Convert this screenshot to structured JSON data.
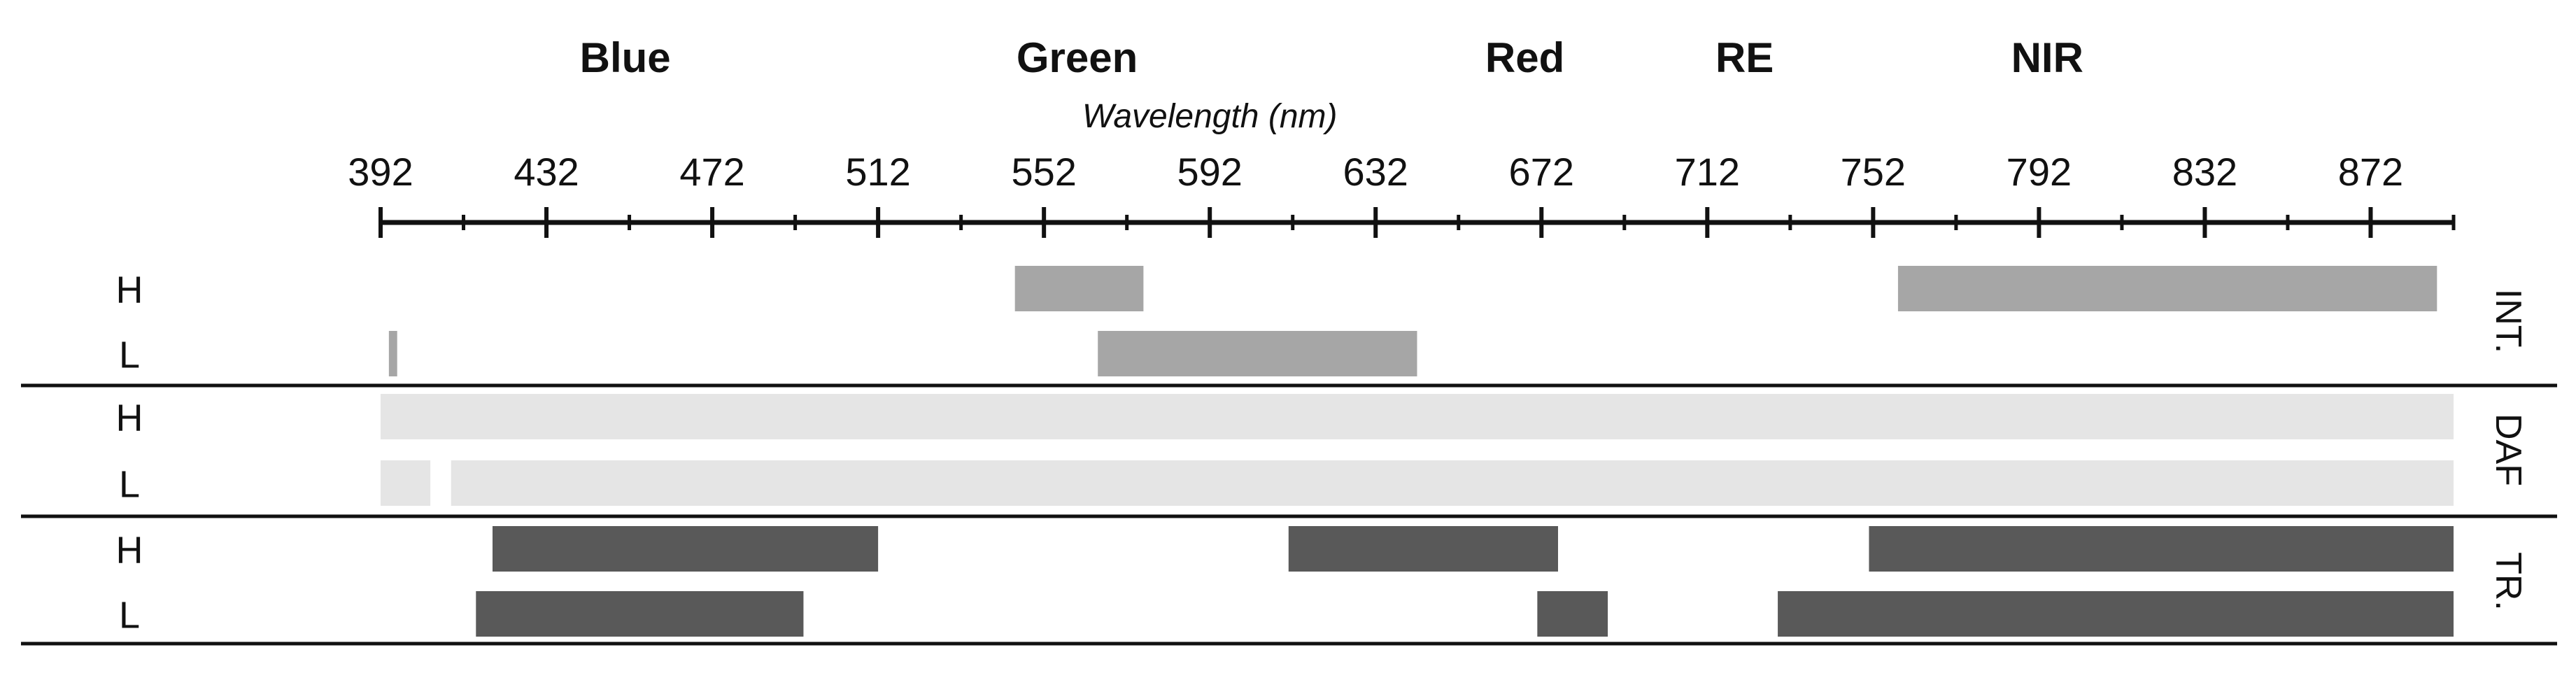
{
  "chart_data": {
    "type": "range-bar",
    "xlabel": "Wavelength (nm)",
    "x_range": [
      392,
      892
    ],
    "ticks_major": [
      392,
      432,
      472,
      512,
      552,
      592,
      632,
      672,
      712,
      752,
      792,
      832,
      872
    ],
    "ticks_minor": [
      412,
      452,
      492,
      532,
      572,
      612,
      652,
      692,
      732,
      772,
      812,
      852,
      892
    ],
    "band_labels": [
      {
        "label": "Blue",
        "center": 451
      },
      {
        "label": "Green",
        "center": 560
      },
      {
        "label": "Red",
        "center": 668
      },
      {
        "label": "RE",
        "center": 721
      },
      {
        "label": "NIR",
        "center": 794
      }
    ],
    "groups": [
      {
        "name": "INT.",
        "color": "#a6a6a6",
        "rows": [
          {
            "label": "H",
            "ranges": [
              [
                545,
                576
              ],
              [
                758,
                888
              ]
            ]
          },
          {
            "label": "L",
            "ranges": [
              [
                394,
                396
              ],
              [
                565,
                642
              ]
            ]
          }
        ]
      },
      {
        "name": "DAF",
        "color": "#e5e5e5",
        "rows": [
          {
            "label": "H",
            "ranges": [
              [
                392,
                892
              ]
            ]
          },
          {
            "label": "L",
            "ranges": [
              [
                392,
                404
              ],
              [
                409,
                892
              ]
            ]
          }
        ]
      },
      {
        "name": "TR.",
        "color": "#595959",
        "rows": [
          {
            "label": "H",
            "ranges": [
              [
                419,
                512
              ],
              [
                611,
                676
              ],
              [
                751,
                892
              ]
            ]
          },
          {
            "label": "L",
            "ranges": [
              [
                415,
                494
              ],
              [
                671,
                688
              ],
              [
                729,
                892
              ]
            ]
          }
        ]
      }
    ]
  }
}
